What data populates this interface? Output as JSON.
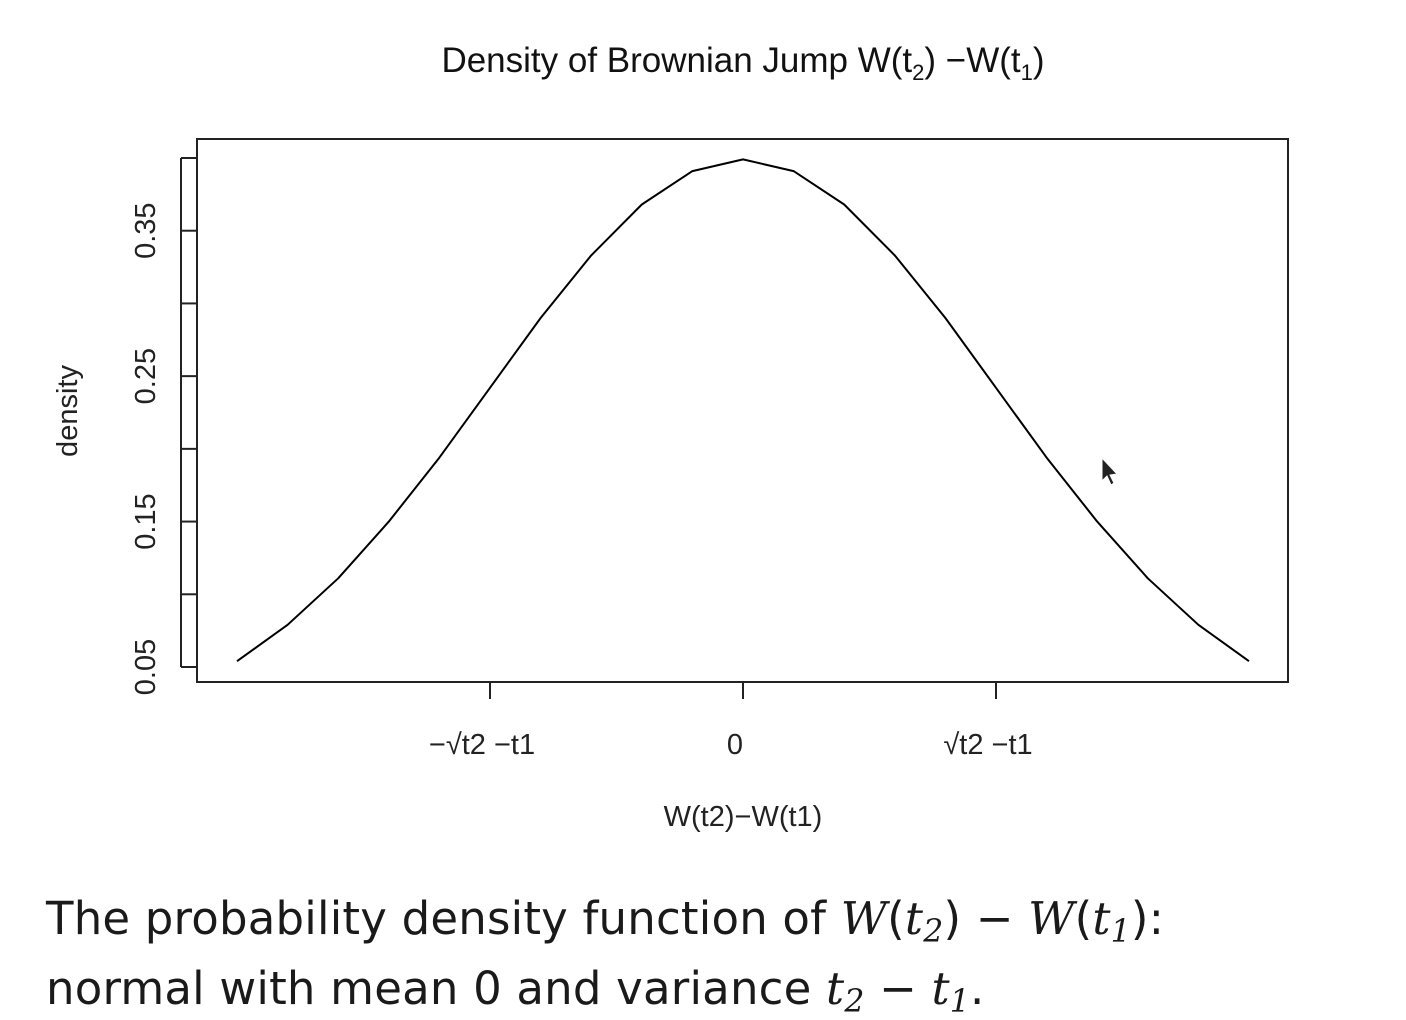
{
  "chart_data": {
    "type": "line",
    "title": "Density of Brownian Jump W(t₂) −W(t₁)",
    "title_parts": {
      "prefix": "Density of Brownian Jump W(t",
      "sub1": "2",
      "mid": ") −W(t",
      "sub2": "1",
      "suffix": ")"
    },
    "xlabel": "W(t2)−W(t1)",
    "ylabel": "density",
    "xlim": [
      -2.15,
      2.15
    ],
    "ylim": [
      0.05,
      0.4
    ],
    "x_ticks": [
      {
        "value": -1,
        "label": "−√t2 −t1"
      },
      {
        "value": 0,
        "label": "0"
      },
      {
        "value": 1,
        "label": "√t2 −t1"
      }
    ],
    "y_ticks": [
      0.05,
      0.1,
      0.15,
      0.2,
      0.25,
      0.3,
      0.35,
      0.4
    ],
    "y_tick_labels": [
      {
        "value": 0.05,
        "label": "0.05"
      },
      {
        "value": 0.15,
        "label": "0.15"
      },
      {
        "value": 0.25,
        "label": "0.25"
      },
      {
        "value": 0.35,
        "label": "0.35"
      }
    ],
    "series": [
      {
        "x": [
          -2.0,
          -1.8,
          -1.6,
          -1.4,
          -1.2,
          -1.0,
          -0.8,
          -0.6,
          -0.4,
          -0.2,
          0.0,
          0.2,
          0.4,
          0.6,
          0.8,
          1.0,
          1.2,
          1.4,
          1.6,
          1.8,
          2.0
        ],
        "values": [
          0.054,
          0.079,
          0.111,
          0.15,
          0.194,
          0.242,
          0.29,
          0.333,
          0.368,
          0.391,
          0.399,
          0.391,
          0.368,
          0.333,
          0.29,
          0.242,
          0.194,
          0.15,
          0.111,
          0.079,
          0.054
        ],
        "color": "#000000"
      }
    ],
    "grid": false,
    "legend": "none"
  },
  "caption": {
    "line1_text": "The probability density function of ",
    "line1_math": {
      "a": "W",
      "b": "t",
      "b_sub": "2",
      "c": "W",
      "d": "t",
      "d_sub": "1"
    },
    "line2_text": "normal with mean 0 and variance ",
    "line2_math": {
      "a": "t",
      "a_sub": "2",
      "b": "t",
      "b_sub": "1"
    }
  }
}
